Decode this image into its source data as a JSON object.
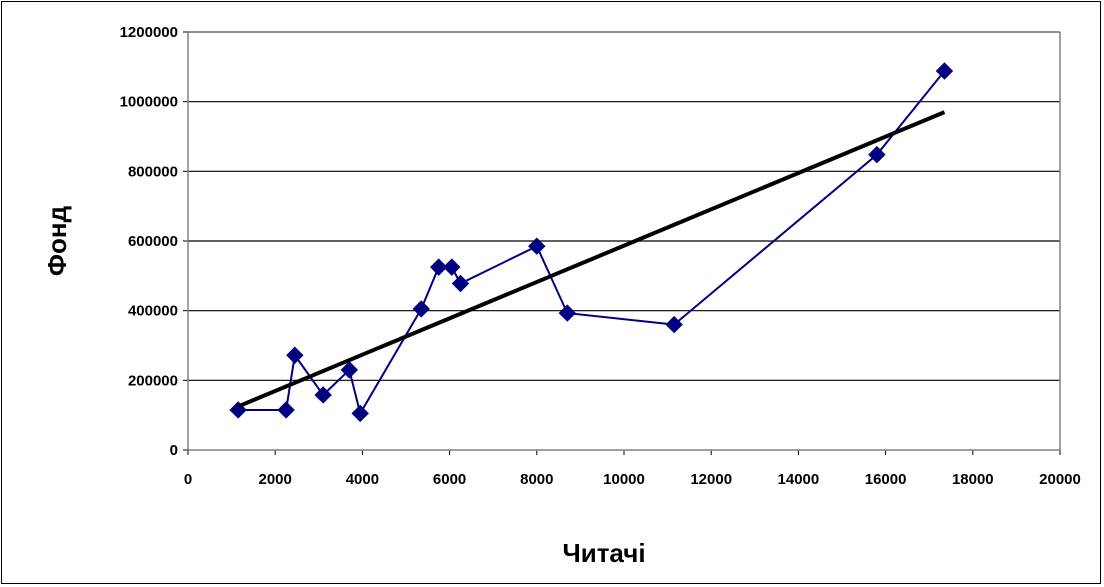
{
  "chart_data": {
    "type": "scatter",
    "title": "",
    "xlabel": "Читачі",
    "ylabel": "Фонд",
    "xlim": [
      0,
      20000
    ],
    "ylim": [
      0,
      1200000
    ],
    "x_ticks": [
      0,
      2000,
      4000,
      6000,
      8000,
      10000,
      12000,
      14000,
      16000,
      18000,
      20000
    ],
    "y_ticks": [
      0,
      200000,
      400000,
      600000,
      800000,
      1000000,
      1200000
    ],
    "grid": "horizontal",
    "legend": "none",
    "series": [
      {
        "style": "line-with-diamond-markers",
        "color": "#000080",
        "points": [
          {
            "x": 1150,
            "y": 115000
          },
          {
            "x": 2250,
            "y": 115000
          },
          {
            "x": 2450,
            "y": 272000
          },
          {
            "x": 3100,
            "y": 158000
          },
          {
            "x": 3700,
            "y": 230000
          },
          {
            "x": 3950,
            "y": 105000
          },
          {
            "x": 5350,
            "y": 405000
          },
          {
            "x": 5750,
            "y": 525000
          },
          {
            "x": 6050,
            "y": 525000
          },
          {
            "x": 6250,
            "y": 478000
          },
          {
            "x": 8000,
            "y": 585000
          },
          {
            "x": 8700,
            "y": 393000
          },
          {
            "x": 11150,
            "y": 360000
          },
          {
            "x": 15800,
            "y": 848000
          },
          {
            "x": 17350,
            "y": 1088000
          }
        ]
      },
      {
        "style": "trendline",
        "color": "#000000",
        "points": [
          {
            "x": 1150,
            "y": 125000
          },
          {
            "x": 17350,
            "y": 970000
          }
        ]
      }
    ]
  }
}
